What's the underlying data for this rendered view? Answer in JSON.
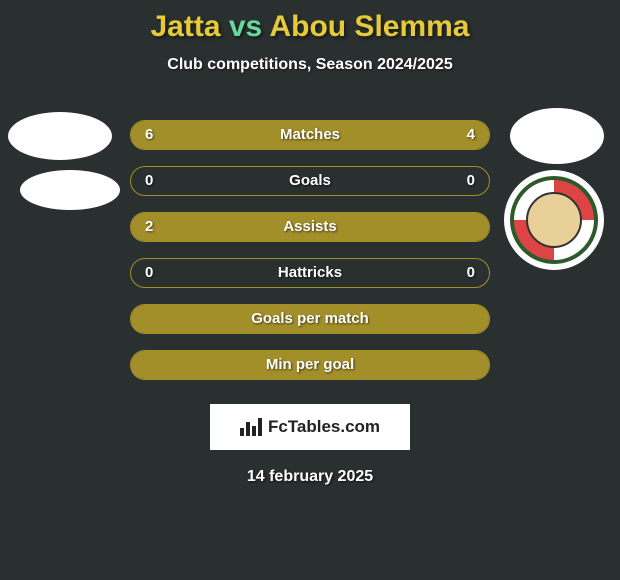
{
  "title": {
    "parts": [
      "Jatta",
      "vs",
      "Abou Slemma"
    ],
    "colors": [
      "#e6ca3a",
      "#66d9a0",
      "#e6ca3a"
    ]
  },
  "subtitle": "Club competitions, Season 2024/2025",
  "left_color": "#a38f2a",
  "right_color": "#a38f2a",
  "empty_border": "#a38f2a",
  "full_fill": "#a38f2a",
  "rows": [
    {
      "label": "Matches",
      "left": "6",
      "right": "4",
      "left_pct": 60,
      "right_pct": 40
    },
    {
      "label": "Goals",
      "left": "0",
      "right": "0",
      "left_pct": 0,
      "right_pct": 0
    },
    {
      "label": "Assists",
      "left": "2",
      "right": "",
      "left_pct": 100,
      "right_pct": 0
    },
    {
      "label": "Hattricks",
      "left": "0",
      "right": "0",
      "left_pct": 0,
      "right_pct": 0
    },
    {
      "label": "Goals per match",
      "left": "",
      "right": "",
      "left_pct": 0,
      "right_pct": 0,
      "filled": true
    },
    {
      "label": "Min per goal",
      "left": "",
      "right": "",
      "left_pct": 0,
      "right_pct": 0,
      "filled": true
    }
  ],
  "branding": "FcTables.com",
  "date": "14 february 2025",
  "fontsize": {
    "title": 30,
    "subtitle": 16,
    "row": 15,
    "branding": 17,
    "date": 16
  }
}
